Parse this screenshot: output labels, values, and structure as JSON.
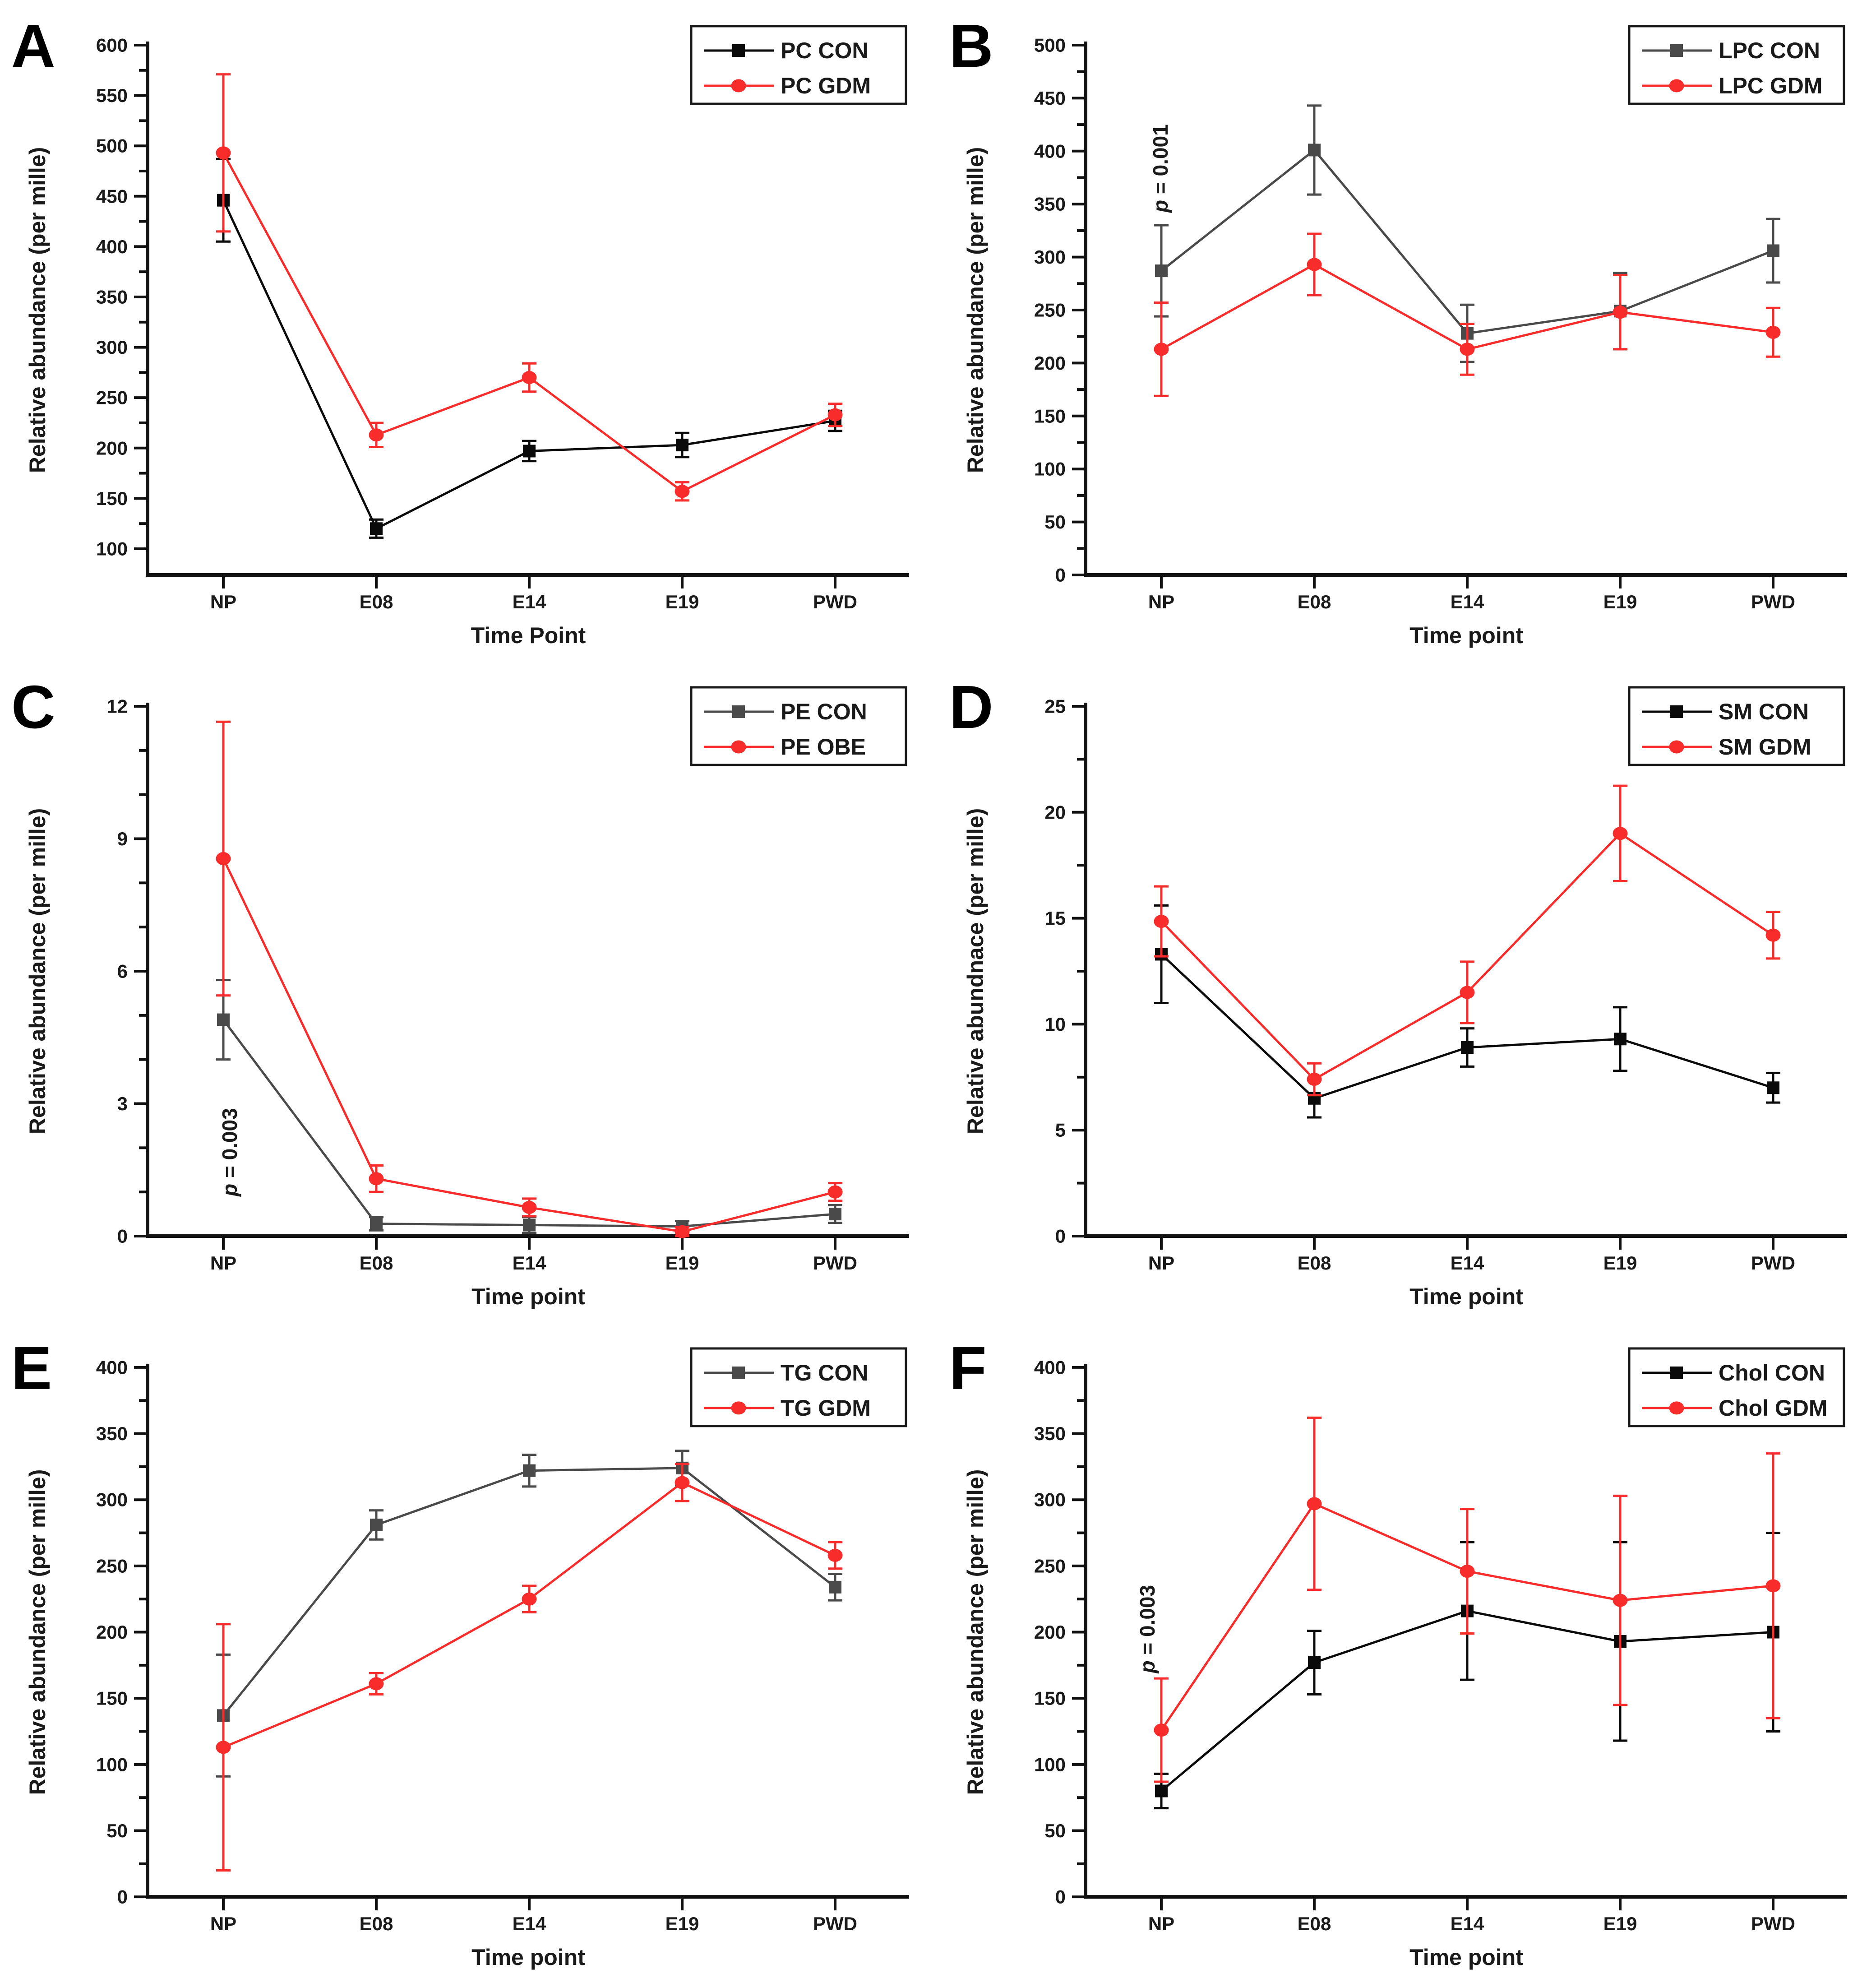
{
  "figure": {
    "background": "#ffffff",
    "axis_color": "#111111",
    "text_color": "#1a1a1a",
    "con_black": "#0a0a0a",
    "con_gray": "#4a4a4a",
    "gdm_red": "#f92c2c"
  },
  "chart_data": [
    {
      "type": "line",
      "panel_label": "A",
      "xlabel": "Time Point",
      "ylabel": "Relative abundance (per mille)",
      "categories": [
        "NP",
        "E08",
        "E14",
        "E19",
        "PWD"
      ],
      "y_axis": {
        "min": 74,
        "max": 600,
        "majors": [
          100,
          150,
          200,
          250,
          300,
          350,
          400,
          450,
          500,
          550,
          600
        ],
        "minors": [
          125,
          175,
          225,
          275,
          325,
          375,
          425,
          475,
          525,
          575
        ]
      },
      "legend_position": "top-right",
      "annotation": null,
      "series": [
        {
          "name": "PC CON",
          "marker": "square",
          "color": "#0a0a0a",
          "values": [
            446,
            120,
            197,
            203,
            227
          ],
          "errors": [
            41,
            9,
            10,
            12,
            10
          ]
        },
        {
          "name": "PC GDM",
          "marker": "circle",
          "color": "#f92c2c",
          "values": [
            493,
            213,
            270,
            157,
            233
          ],
          "errors": [
            78,
            12,
            14,
            9,
            11
          ]
        }
      ]
    },
    {
      "type": "line",
      "panel_label": "B",
      "xlabel": "Time point",
      "ylabel": "Relative abundance (per mille)",
      "categories": [
        "NP",
        "E08",
        "E14",
        "E19",
        "PWD"
      ],
      "y_axis": {
        "min": 0,
        "max": 500,
        "majors": [
          0,
          50,
          100,
          150,
          200,
          250,
          300,
          350,
          400,
          450,
          500
        ],
        "minors": [
          25,
          75,
          125,
          175,
          225,
          275,
          325,
          375,
          425,
          475
        ]
      },
      "legend_position": "top-right",
      "annotation": {
        "p_label": "p",
        "rest": " = 0.001",
        "x_offset": 14,
        "y_start": 342
      },
      "series": [
        {
          "name": "LPC CON",
          "marker": "square",
          "color": "#4a4a4a",
          "values": [
            287,
            401,
            228,
            249,
            306
          ],
          "errors": [
            43,
            42,
            27,
            36,
            30
          ]
        },
        {
          "name": "LPC GDM",
          "marker": "circle",
          "color": "#f92c2c",
          "values": [
            213,
            293,
            213,
            248,
            229
          ],
          "errors": [
            44,
            29,
            24,
            35,
            23
          ]
        }
      ]
    },
    {
      "type": "line",
      "panel_label": "C",
      "xlabel": "Time point",
      "ylabel": "Relative abundance (per mille)",
      "categories": [
        "NP",
        "E08",
        "E14",
        "E19",
        "PWD"
      ],
      "y_axis": {
        "min": 0,
        "max": 12,
        "majors": [
          0,
          3,
          6,
          9,
          12
        ],
        "minors": [
          1,
          2,
          4,
          5,
          7,
          8,
          10,
          11
        ]
      },
      "legend_position": "top-right",
      "annotation": {
        "p_label": "p",
        "rest": " = 0.003",
        "x_offset": 30,
        "y_start": 0.9
      },
      "series": [
        {
          "name": "PE CON",
          "marker": "square",
          "color": "#4a4a4a",
          "values": [
            4.9,
            0.28,
            0.25,
            0.22,
            0.5
          ],
          "errors": [
            0.9,
            0.15,
            0.18,
            0.12,
            0.2
          ]
        },
        {
          "name": "PE OBE",
          "marker": "circle",
          "color": "#f92c2c",
          "values": [
            8.55,
            1.3,
            0.65,
            0.1,
            1.0
          ],
          "errors": [
            3.1,
            0.3,
            0.2,
            0.1,
            0.2
          ]
        }
      ]
    },
    {
      "type": "line",
      "panel_label": "D",
      "xlabel": "Time point",
      "ylabel": "Relative abundnace (per mille)",
      "categories": [
        "NP",
        "E08",
        "E14",
        "E19",
        "PWD"
      ],
      "y_axis": {
        "min": 0,
        "max": 25,
        "majors": [
          0,
          5,
          10,
          15,
          20,
          25
        ],
        "minors": [
          2.5,
          7.5,
          12.5,
          17.5,
          22.5
        ]
      },
      "legend_position": "top-right",
      "annotation": null,
      "series": [
        {
          "name": "SM CON",
          "marker": "square",
          "color": "#0a0a0a",
          "values": [
            13.3,
            6.5,
            8.9,
            9.3,
            7.0
          ],
          "errors": [
            2.3,
            0.9,
            0.9,
            1.5,
            0.7
          ]
        },
        {
          "name": "SM GDM",
          "marker": "circle",
          "color": "#f92c2c",
          "values": [
            14.85,
            7.4,
            11.5,
            19.0,
            14.2
          ],
          "errors": [
            1.65,
            0.75,
            1.45,
            2.25,
            1.1
          ]
        }
      ]
    },
    {
      "type": "line",
      "panel_label": "E",
      "xlabel": "Time point",
      "ylabel": "Relative abundance (per mille)",
      "categories": [
        "NP",
        "E08",
        "E14",
        "E19",
        "PWD"
      ],
      "y_axis": {
        "min": 0,
        "max": 400,
        "majors": [
          0,
          50,
          100,
          150,
          200,
          250,
          300,
          350,
          400
        ],
        "minors": [
          25,
          75,
          125,
          175,
          225,
          275,
          325,
          375
        ]
      },
      "legend_position": "top-right",
      "annotation": null,
      "series": [
        {
          "name": "TG CON",
          "marker": "square",
          "color": "#4a4a4a",
          "values": [
            137,
            281,
            322,
            324,
            234
          ],
          "errors": [
            46,
            11,
            12,
            13,
            10
          ]
        },
        {
          "name": "TG GDM",
          "marker": "circle",
          "color": "#f92c2c",
          "values": [
            113,
            161,
            225,
            313,
            258
          ],
          "errors": [
            93,
            8,
            10,
            14,
            10
          ]
        }
      ]
    },
    {
      "type": "line",
      "panel_label": "F",
      "xlabel": "Time point",
      "ylabel": "Relative abundance (per mille)",
      "categories": [
        "NP",
        "E08",
        "E14",
        "E19",
        "PWD"
      ],
      "y_axis": {
        "min": 0,
        "max": 400,
        "majors": [
          0,
          50,
          100,
          150,
          200,
          250,
          300,
          350,
          400
        ],
        "minors": [
          25,
          75,
          125,
          175,
          225,
          275,
          325,
          375
        ]
      },
      "legend_position": "top-right",
      "annotation": {
        "p_label": "p",
        "rest": " = 0.003",
        "x_offset": -15,
        "y_start": 169
      },
      "series": [
        {
          "name": "Chol CON",
          "marker": "square",
          "color": "#0a0a0a",
          "values": [
            80,
            177,
            216,
            193,
            200
          ],
          "errors": [
            13,
            24,
            52,
            75,
            75
          ]
        },
        {
          "name": "Chol GDM",
          "marker": "circle",
          "color": "#f92c2c",
          "values": [
            126,
            297,
            246,
            224,
            235
          ],
          "errors": [
            39,
            65,
            47,
            79,
            100
          ]
        }
      ]
    }
  ]
}
